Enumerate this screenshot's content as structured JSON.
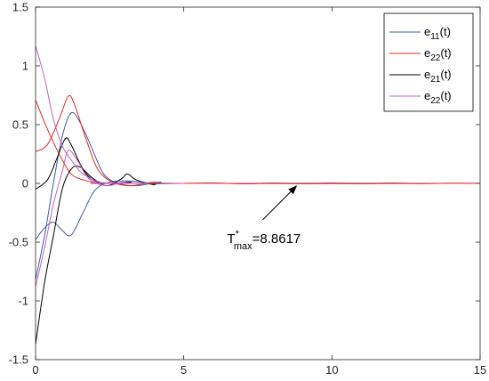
{
  "chart_data": {
    "type": "line",
    "title": "",
    "xlabel": "",
    "ylabel": "",
    "xlim": [
      0,
      15
    ],
    "ylim": [
      -1.5,
      1.5
    ],
    "xticks": [
      0,
      5,
      10,
      15
    ],
    "yticks": [
      -1.5,
      -1,
      -0.5,
      0,
      0.5,
      1,
      1.5
    ],
    "xtick_labels": [
      "0",
      "5",
      "10",
      "15"
    ],
    "ytick_labels": [
      "-1.5",
      "-1",
      "-0.5",
      "0",
      "0.5",
      "1",
      "1.5"
    ],
    "grid": false,
    "legend_position": "top-right",
    "legend": [
      {
        "base": "e",
        "sub": "11",
        "suffix": "(t)",
        "color": "#3b5cab"
      },
      {
        "base": "e",
        "sub": "22",
        "suffix": "(t)",
        "color": "#e8281c"
      },
      {
        "base": "e",
        "sub": "21",
        "suffix": "(t)",
        "color": "#000000"
      },
      {
        "base": "e",
        "sub": "22",
        "suffix": "(t)",
        "color": "#c460c4"
      }
    ],
    "series": [
      {
        "color": "#3b5cab",
        "points": [
          [
            0,
            -0.48
          ],
          [
            0.3,
            -0.38
          ],
          [
            0.6,
            -0.33
          ],
          [
            0.9,
            -0.4
          ],
          [
            1.2,
            -0.44
          ],
          [
            1.6,
            -0.25
          ],
          [
            2.0,
            -0.06
          ],
          [
            2.5,
            0.01
          ],
          [
            3.2,
            0.02
          ],
          [
            4.0,
            0.0
          ],
          [
            5,
            0
          ],
          [
            15,
            0
          ]
        ]
      },
      {
        "color": "#3b5cab",
        "points": [
          [
            0,
            -0.82
          ],
          [
            0.3,
            -0.45
          ],
          [
            0.6,
            0.0
          ],
          [
            0.9,
            0.4
          ],
          [
            1.2,
            0.6
          ],
          [
            1.5,
            0.52
          ],
          [
            1.9,
            0.3
          ],
          [
            2.3,
            0.08
          ],
          [
            2.8,
            0.0
          ],
          [
            3.4,
            -0.02
          ],
          [
            4.2,
            0.01
          ],
          [
            5,
            0
          ],
          [
            15,
            0
          ]
        ]
      },
      {
        "color": "#e8281c",
        "points": [
          [
            0,
            0.71
          ],
          [
            0.3,
            0.52
          ],
          [
            0.6,
            0.35
          ],
          [
            0.9,
            0.2
          ],
          [
            1.2,
            0.08
          ],
          [
            1.6,
            0.03
          ],
          [
            2.2,
            0.0
          ],
          [
            3,
            0
          ],
          [
            15,
            0
          ]
        ]
      },
      {
        "color": "#e8281c",
        "points": [
          [
            0,
            0.27
          ],
          [
            0.4,
            0.33
          ],
          [
            0.8,
            0.55
          ],
          [
            1.1,
            0.74
          ],
          [
            1.3,
            0.68
          ],
          [
            1.7,
            0.38
          ],
          [
            2.1,
            0.12
          ],
          [
            2.6,
            0.01
          ],
          [
            3.2,
            -0.02
          ],
          [
            4.0,
            0.01
          ],
          [
            5,
            0
          ],
          [
            15,
            0
          ]
        ]
      },
      {
        "color": "#000000",
        "points": [
          [
            0,
            -1.37
          ],
          [
            0.3,
            -0.85
          ],
          [
            0.6,
            -0.45
          ],
          [
            0.9,
            -0.05
          ],
          [
            1.2,
            0.12
          ],
          [
            1.5,
            0.14
          ],
          [
            1.9,
            0.05
          ],
          [
            2.4,
            -0.02
          ],
          [
            2.9,
            0.04
          ],
          [
            3.1,
            0.08
          ],
          [
            3.4,
            0.03
          ],
          [
            4.0,
            -0.01
          ],
          [
            5,
            0
          ],
          [
            15,
            0
          ]
        ]
      },
      {
        "color": "#000000",
        "points": [
          [
            0,
            -0.05
          ],
          [
            0.4,
            0.03
          ],
          [
            0.7,
            0.2
          ],
          [
            1.0,
            0.38
          ],
          [
            1.2,
            0.33
          ],
          [
            1.6,
            0.12
          ],
          [
            2.0,
            0.02
          ],
          [
            2.6,
            0.0
          ],
          [
            3.2,
            0.01
          ],
          [
            4.0,
            0
          ],
          [
            15,
            0
          ]
        ]
      },
      {
        "color": "#c460c4",
        "points": [
          [
            0,
            1.17
          ],
          [
            0.3,
            0.9
          ],
          [
            0.6,
            0.55
          ],
          [
            0.9,
            0.32
          ],
          [
            1.2,
            0.2
          ],
          [
            1.6,
            0.08
          ],
          [
            2.2,
            0.01
          ],
          [
            3,
            0
          ],
          [
            15,
            0
          ]
        ]
      },
      {
        "color": "#c460c4",
        "points": [
          [
            0,
            -0.88
          ],
          [
            0.3,
            -0.55
          ],
          [
            0.6,
            -0.18
          ],
          [
            0.9,
            0.1
          ],
          [
            1.1,
            0.28
          ],
          [
            1.4,
            0.2
          ],
          [
            1.8,
            0.04
          ],
          [
            2.4,
            -0.02
          ],
          [
            3.0,
            0.01
          ],
          [
            4.0,
            0
          ],
          [
            15,
            0
          ]
        ]
      },
      {
        "color": "#e8281c",
        "points": [
          [
            5,
            0.0
          ],
          [
            6,
            0.004
          ],
          [
            7,
            -0.004
          ],
          [
            8,
            0.003
          ],
          [
            9,
            -0.003
          ],
          [
            10,
            0.003
          ],
          [
            11,
            -0.003
          ],
          [
            12,
            0.003
          ],
          [
            13,
            -0.002
          ],
          [
            14,
            0.002
          ],
          [
            15,
            0
          ]
        ]
      }
    ],
    "annotation": {
      "base": "T",
      "sup": "*",
      "sub": "max",
      "value": "=8.8617",
      "arrow_to": [
        8.8617,
        0
      ]
    }
  }
}
